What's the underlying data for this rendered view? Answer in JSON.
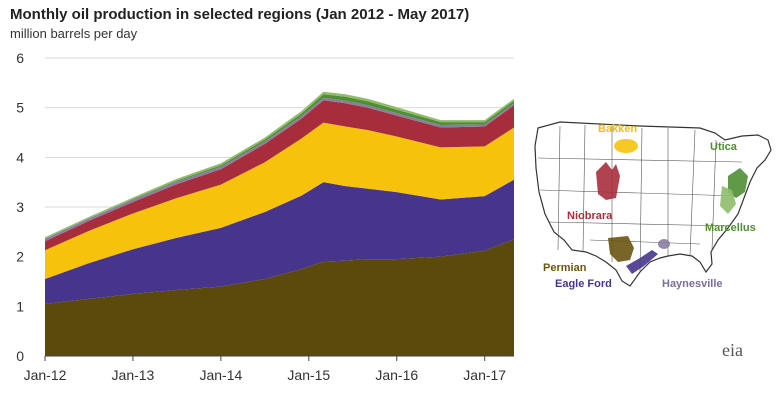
{
  "chart_data": {
    "type": "area",
    "stacked": true,
    "title": "Monthly oil production in selected regions (Jan 2012 - May 2017)",
    "subtitle": "million barrels per day",
    "xlabel": "",
    "ylabel": "",
    "ylim": [
      0,
      6
    ],
    "yticks": [
      0,
      1,
      2,
      3,
      4,
      5,
      6
    ],
    "xticks": [
      "Jan-12",
      "Jan-13",
      "Jan-14",
      "Jan-15",
      "Jan-16",
      "Jan-17"
    ],
    "x": [
      "Jan-12",
      "Jul-12",
      "Jan-13",
      "Jul-13",
      "Jan-14",
      "Jul-14",
      "Dec-14",
      "Mar-15",
      "Jun-15",
      "Sep-15",
      "Jan-16",
      "Jul-16",
      "Jan-17",
      "May-17"
    ],
    "grid": true,
    "series": [
      {
        "name": "Permian",
        "color": "#5c4a0c",
        "values": [
          1.05,
          1.15,
          1.25,
          1.33,
          1.4,
          1.55,
          1.75,
          1.9,
          1.92,
          1.95,
          1.95,
          2.0,
          2.12,
          2.35
        ]
      },
      {
        "name": "Eagle Ford",
        "color": "#47358c",
        "values": [
          0.5,
          0.72,
          0.9,
          1.05,
          1.18,
          1.35,
          1.48,
          1.6,
          1.5,
          1.42,
          1.35,
          1.15,
          1.1,
          1.2
        ]
      },
      {
        "name": "Bakken",
        "color": "#f7c20c",
        "values": [
          0.58,
          0.65,
          0.72,
          0.8,
          0.87,
          1.0,
          1.15,
          1.2,
          1.2,
          1.18,
          1.12,
          1.05,
          1.0,
          1.05
        ]
      },
      {
        "name": "Niobrara",
        "color": "#a82d3c",
        "values": [
          0.18,
          0.2,
          0.23,
          0.28,
          0.31,
          0.37,
          0.4,
          0.45,
          0.47,
          0.45,
          0.42,
          0.4,
          0.4,
          0.45
        ]
      },
      {
        "name": "Haynesville",
        "color": "#8a7ea0",
        "values": [
          0.05,
          0.05,
          0.05,
          0.05,
          0.05,
          0.05,
          0.05,
          0.05,
          0.05,
          0.05,
          0.05,
          0.05,
          0.04,
          0.04
        ]
      },
      {
        "name": "Utica",
        "color": "#4f8e33",
        "values": [
          0.0,
          0.0,
          0.01,
          0.02,
          0.03,
          0.04,
          0.05,
          0.07,
          0.08,
          0.08,
          0.07,
          0.06,
          0.05,
          0.05
        ]
      },
      {
        "name": "Marcellus",
        "color": "#8fbc6b",
        "values": [
          0.03,
          0.03,
          0.03,
          0.04,
          0.04,
          0.04,
          0.05,
          0.05,
          0.05,
          0.05,
          0.05,
          0.04,
          0.04,
          0.04
        ]
      }
    ]
  },
  "map": {
    "labels": [
      {
        "key": "bakken",
        "text": "Bakken",
        "color": "#f0bd1c"
      },
      {
        "key": "utica",
        "text": "Utica",
        "color": "#4f8e33"
      },
      {
        "key": "niobrara",
        "text": "Niobrara",
        "color": "#a82d3c"
      },
      {
        "key": "marcellus",
        "text": "Marcellus",
        "color": "#4f8e33"
      },
      {
        "key": "permian",
        "text": "Permian",
        "color": "#6b5412"
      },
      {
        "key": "eagle_ford",
        "text": "Eagle Ford",
        "color": "#47358c"
      },
      {
        "key": "haynesville",
        "text": "Haynesville",
        "color": "#7a6f9a"
      }
    ]
  },
  "logo": {
    "text": "eia"
  }
}
